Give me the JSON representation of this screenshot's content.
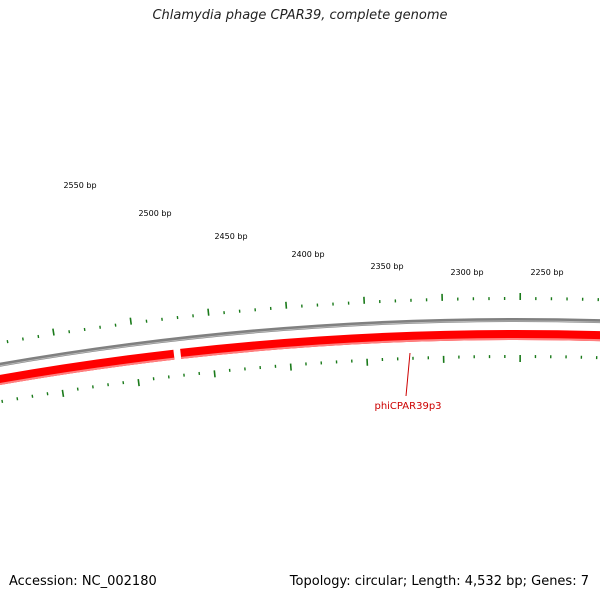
{
  "title": "Chlamydia phage CPAR39, complete genome",
  "footer": {
    "accession": "Accession: NC_002180",
    "summary": "Topology: circular; Length: 4,532 bp; Genes: 7"
  },
  "genome": {
    "length_bp": 4532,
    "topology": "circular",
    "gene_count": 7
  },
  "scale_labels": [
    "2550 bp",
    "2500 bp",
    "2450 bp",
    "2400 bp",
    "2350 bp",
    "2300 bp",
    "2250 bp"
  ],
  "gene_label": "phiCPAR39p3",
  "colors": {
    "backbone": "#808080",
    "gene": "#ff0000",
    "gene_label": "#cc0000",
    "ticks": "#1a7a1a"
  }
}
